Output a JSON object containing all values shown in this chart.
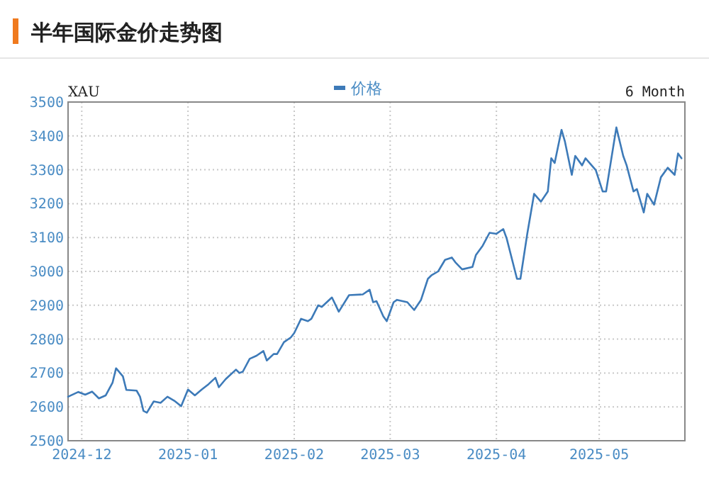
{
  "chart_data": {
    "type": "line",
    "title": "半年国际金价走势图",
    "annotations": [
      "XAU",
      "6 Month"
    ],
    "x": [
      "2024-11-27",
      "2024-11-30",
      "2024-12-02",
      "2024-12-04",
      "2024-12-06",
      "2024-12-08",
      "2024-12-10",
      "2024-12-11",
      "2024-12-13",
      "2024-12-14",
      "2024-12-17",
      "2024-12-18",
      "2024-12-19",
      "2024-12-20",
      "2024-12-22",
      "2024-12-24",
      "2024-12-26",
      "2024-12-28",
      "2024-12-30",
      "2025-01-01",
      "2025-01-03",
      "2025-01-05",
      "2025-01-07",
      "2025-01-09",
      "2025-01-10",
      "2025-01-12",
      "2025-01-15",
      "2025-01-16",
      "2025-01-17",
      "2025-01-19",
      "2025-01-21",
      "2025-01-23",
      "2025-01-24",
      "2025-01-26",
      "2025-01-27",
      "2025-01-29",
      "2025-01-31",
      "2025-02-01",
      "2025-02-03",
      "2025-02-05",
      "2025-02-06",
      "2025-02-08",
      "2025-02-09",
      "2025-02-12",
      "2025-02-14",
      "2025-02-17",
      "2025-02-21",
      "2025-02-23",
      "2025-02-24",
      "2025-02-25",
      "2025-02-27",
      "2025-02-28",
      "2025-03-02",
      "2025-03-03",
      "2025-03-06",
      "2025-03-08",
      "2025-03-10",
      "2025-03-12",
      "2025-03-13",
      "2025-03-15",
      "2025-03-17",
      "2025-03-19",
      "2025-03-20",
      "2025-03-22",
      "2025-03-25",
      "2025-03-26",
      "2025-03-28",
      "2025-03-30",
      "2025-04-01",
      "2025-04-03",
      "2025-04-04",
      "2025-04-07",
      "2025-04-08",
      "2025-04-10",
      "2025-04-12",
      "2025-04-14",
      "2025-04-16",
      "2025-04-17",
      "2025-04-18",
      "2025-04-20",
      "2025-04-21",
      "2025-04-23",
      "2025-04-24",
      "2025-04-26",
      "2025-04-27",
      "2025-04-30",
      "2025-05-02",
      "2025-05-03",
      "2025-05-06",
      "2025-05-08",
      "2025-05-09",
      "2025-05-11",
      "2025-05-12",
      "2025-05-14",
      "2025-05-15",
      "2025-05-17",
      "2025-05-19",
      "2025-05-21",
      "2025-05-23",
      "2025-05-24",
      "2025-05-25"
    ],
    "series": [
      {
        "name": "价格",
        "color": "#3d7ab8",
        "values": [
          2630,
          2644,
          2636,
          2645,
          2625,
          2634,
          2672,
          2714,
          2690,
          2650,
          2648,
          2630,
          2588,
          2583,
          2616,
          2612,
          2630,
          2618,
          2602,
          2651,
          2634,
          2651,
          2667,
          2686,
          2658,
          2682,
          2710,
          2700,
          2704,
          2742,
          2751,
          2765,
          2737,
          2756,
          2756,
          2791,
          2805,
          2818,
          2860,
          2853,
          2860,
          2900,
          2895,
          2923,
          2881,
          2930,
          2932,
          2946,
          2909,
          2912,
          2867,
          2853,
          2909,
          2916,
          2909,
          2886,
          2916,
          2978,
          2988,
          3000,
          3034,
          3041,
          3027,
          3006,
          3013,
          3048,
          3076,
          3114,
          3111,
          3125,
          3097,
          2978,
          2978,
          3111,
          3229,
          3206,
          3236,
          3334,
          3320,
          3418,
          3383,
          3285,
          3341,
          3313,
          3334,
          3299,
          3236,
          3236,
          3425,
          3341,
          3313,
          3236,
          3243,
          3174,
          3229,
          3197,
          3278,
          3306,
          3285,
          3348,
          3334
        ]
      }
    ],
    "xlim": [
      "2024-11-27",
      "2025-05-26"
    ],
    "xticks": [
      "2024-12",
      "2025-01",
      "2025-02",
      "2025-03",
      "2025-04",
      "2025-05"
    ],
    "ylim": [
      2500,
      3500
    ],
    "yticks": [
      2500,
      2600,
      2700,
      2800,
      2900,
      3000,
      3100,
      3200,
      3300,
      3400,
      3500
    ],
    "grid": true,
    "legend": "top",
    "marker": "none",
    "line_style": "solid"
  }
}
